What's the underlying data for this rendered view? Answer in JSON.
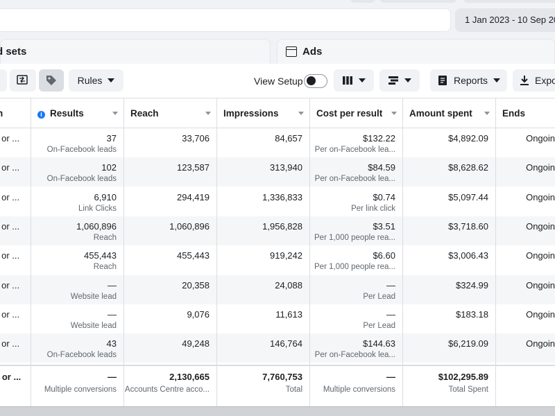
{
  "header": {
    "date_range": "1 Jan 2023 - 10 Sep 20"
  },
  "tabs": {
    "ad_sets": "d sets",
    "ads": "Ads"
  },
  "toolbar": {
    "rules_label": "Rules",
    "view_setup_label": "View Setup",
    "reports_label": "Reports",
    "export_label": "Expo"
  },
  "table": {
    "headers": {
      "name": "n",
      "results": "Results",
      "reach": "Reach",
      "impressions": "Impressions",
      "cost_per_result": "Cost per result",
      "amount_spent": "Amount spent",
      "ends": "Ends"
    },
    "rows": [
      {
        "name": "k or ...",
        "results": "37",
        "results_sub": "On-Facebook leads",
        "reach": "33,706",
        "impressions": "84,657",
        "cost": "$132.22",
        "cost_sub": "Per on-Facebook lea...",
        "spent": "$4,892.09",
        "ends": "Ongoin"
      },
      {
        "name": "k or ...",
        "results": "102",
        "results_sub": "On-Facebook leads",
        "reach": "123,587",
        "impressions": "313,940",
        "cost": "$84.59",
        "cost_sub": "Per on-Facebook lea...",
        "spent": "$8,628.62",
        "ends": "Ongoin"
      },
      {
        "name": "k or ...",
        "results": "6,910",
        "results_sub": "Link Clicks",
        "reach": "294,419",
        "impressions": "1,336,833",
        "cost": "$0.74",
        "cost_sub": "Per link click",
        "spent": "$5,097.44",
        "ends": "Ongoin"
      },
      {
        "name": "k or ...",
        "results": "1,060,896",
        "results_sub": "Reach",
        "reach": "1,060,896",
        "impressions": "1,956,828",
        "cost": "$3.51",
        "cost_sub": "Per 1,000 people rea...",
        "spent": "$3,718.60",
        "ends": "Ongoin"
      },
      {
        "name": "k or ...",
        "results": "455,443",
        "results_sub": "Reach",
        "reach": "455,443",
        "impressions": "919,242",
        "cost": "$6.60",
        "cost_sub": "Per 1,000 people rea...",
        "spent": "$3,006.43",
        "ends": "Ongoin"
      },
      {
        "name": "k or ...",
        "results": "—",
        "results_sub": "Website lead",
        "reach": "20,358",
        "impressions": "24,088",
        "cost": "—",
        "cost_sub": "Per Lead",
        "spent": "$324.99",
        "ends": "Ongoin"
      },
      {
        "name": "k or ...",
        "results": "—",
        "results_sub": "Website lead",
        "reach": "9,076",
        "impressions": "11,613",
        "cost": "—",
        "cost_sub": "Per Lead",
        "spent": "$183.18",
        "ends": "Ongoin"
      },
      {
        "name": "k or ...",
        "results": "43",
        "results_sub": "On-Facebook leads",
        "reach": "49,248",
        "impressions": "146,764",
        "cost": "$144.63",
        "cost_sub": "Per on-Facebook lea...",
        "spent": "$6,219.09",
        "ends": "Ongoin"
      }
    ],
    "totals": {
      "name": "k or ...",
      "results": "—",
      "results_sub": "Multiple conversions",
      "reach": "2,130,665",
      "reach_sub": "Accounts Centre acco...",
      "impressions": "7,760,753",
      "impressions_sub": "Total",
      "cost": "—",
      "cost_sub": "Multiple conversions",
      "spent": "$102,295.89",
      "spent_sub": "Total Spent"
    }
  },
  "colors": {
    "accent": "#1877f2",
    "background": "#f0f2f5",
    "row_alt": "#f5f6f7"
  }
}
